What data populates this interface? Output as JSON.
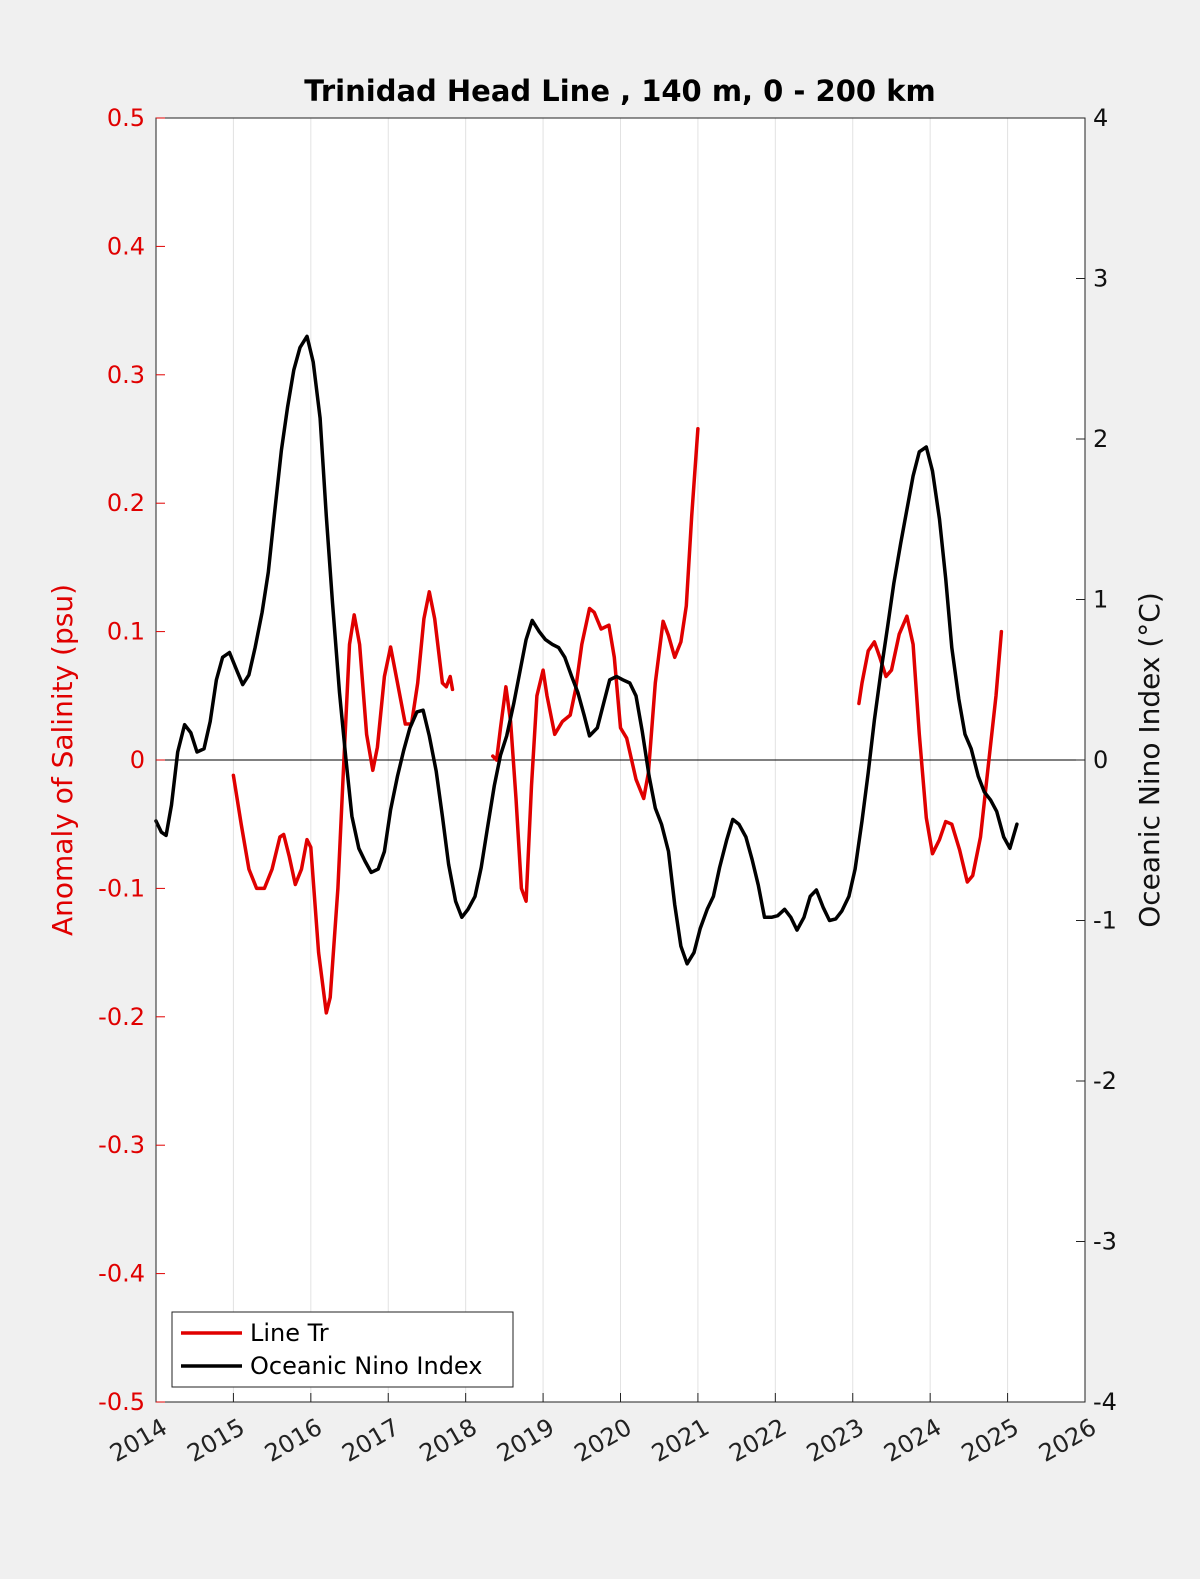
{
  "chart_data": {
    "type": "line",
    "title": "Trinidad Head Line , 140 m, 0 - 200 km",
    "xlabel": "",
    "ylabel_left": "Anomaly of Salinity (psu)",
    "ylabel_right": "Oceanic Nino Index (°C)",
    "xlim": [
      2014,
      2026
    ],
    "ylim_left": [
      -0.5,
      0.5
    ],
    "ylim_right": [
      -4,
      4
    ],
    "x_ticks": [
      "2014",
      "2015",
      "2016",
      "2017",
      "2018",
      "2019",
      "2020",
      "2021",
      "2022",
      "2023",
      "2024",
      "2025",
      "2026"
    ],
    "left_ticks": [
      "-0.5",
      "-0.4",
      "-0.3",
      "-0.2",
      "-0.1",
      "0",
      "0.1",
      "0.2",
      "0.3",
      "0.4",
      "0.5"
    ],
    "right_ticks": [
      "-4",
      "-3",
      "-2",
      "-1",
      "0",
      "1",
      "2",
      "3",
      "4"
    ],
    "grid": "vertical",
    "legend_position": "bottom-left",
    "series": [
      {
        "name": "Line Tr",
        "axis": "left",
        "color": "#e00000",
        "segments": [
          [
            [
              2015.0,
              -0.012
            ],
            [
              2015.1,
              -0.05
            ],
            [
              2015.2,
              -0.085
            ],
            [
              2015.3,
              -0.1
            ],
            [
              2015.4,
              -0.1
            ],
            [
              2015.5,
              -0.085
            ],
            [
              2015.6,
              -0.06
            ],
            [
              2015.65,
              -0.058
            ],
            [
              2015.72,
              -0.075
            ],
            [
              2015.8,
              -0.097
            ],
            [
              2015.88,
              -0.085
            ],
            [
              2015.95,
              -0.062
            ],
            [
              2016.0,
              -0.068
            ],
            [
              2016.1,
              -0.15
            ],
            [
              2016.2,
              -0.197
            ],
            [
              2016.25,
              -0.185
            ],
            [
              2016.35,
              -0.1
            ],
            [
              2016.42,
              -0.01
            ],
            [
              2016.5,
              0.09
            ],
            [
              2016.56,
              0.113
            ],
            [
              2016.63,
              0.09
            ],
            [
              2016.72,
              0.02
            ],
            [
              2016.8,
              -0.008
            ],
            [
              2016.86,
              0.01
            ],
            [
              2016.95,
              0.065
            ],
            [
              2017.03,
              0.088
            ],
            [
              2017.12,
              0.06
            ],
            [
              2017.22,
              0.028
            ],
            [
              2017.3,
              0.028
            ],
            [
              2017.38,
              0.06
            ],
            [
              2017.46,
              0.11
            ],
            [
              2017.53,
              0.131
            ],
            [
              2017.6,
              0.11
            ],
            [
              2017.7,
              0.06
            ],
            [
              2017.75,
              0.057
            ],
            [
              2017.8,
              0.065
            ],
            [
              2017.83,
              0.055
            ]
          ],
          [
            [
              2018.35,
              0.003
            ],
            [
              2018.4,
              0.0
            ],
            [
              2018.45,
              0.025
            ],
            [
              2018.52,
              0.057
            ],
            [
              2018.58,
              0.03
            ],
            [
              2018.65,
              -0.03
            ],
            [
              2018.72,
              -0.1
            ],
            [
              2018.78,
              -0.11
            ],
            [
              2018.85,
              -0.02
            ],
            [
              2018.92,
              0.05
            ],
            [
              2019.0,
              0.07
            ],
            [
              2019.05,
              0.05
            ],
            [
              2019.15,
              0.02
            ],
            [
              2019.25,
              0.03
            ],
            [
              2019.35,
              0.035
            ],
            [
              2019.42,
              0.055
            ],
            [
              2019.5,
              0.09
            ],
            [
              2019.6,
              0.118
            ],
            [
              2019.66,
              0.115
            ],
            [
              2019.75,
              0.102
            ],
            [
              2019.85,
              0.105
            ],
            [
              2019.92,
              0.08
            ],
            [
              2020.0,
              0.025
            ],
            [
              2020.08,
              0.017
            ],
            [
              2020.2,
              -0.015
            ],
            [
              2020.3,
              -0.03
            ],
            [
              2020.36,
              -0.01
            ],
            [
              2020.45,
              0.06
            ],
            [
              2020.55,
              0.108
            ],
            [
              2020.62,
              0.097
            ],
            [
              2020.7,
              0.08
            ],
            [
              2020.78,
              0.092
            ],
            [
              2020.85,
              0.12
            ],
            [
              2020.92,
              0.19
            ],
            [
              2021.0,
              0.258
            ]
          ],
          [
            [
              2023.08,
              0.044
            ],
            [
              2023.12,
              0.06
            ],
            [
              2023.2,
              0.085
            ],
            [
              2023.28,
              0.092
            ],
            [
              2023.35,
              0.08
            ],
            [
              2023.43,
              0.065
            ],
            [
              2023.5,
              0.07
            ],
            [
              2023.6,
              0.098
            ],
            [
              2023.7,
              0.112
            ],
            [
              2023.78,
              0.09
            ],
            [
              2023.86,
              0.02
            ],
            [
              2023.95,
              -0.045
            ],
            [
              2024.03,
              -0.073
            ],
            [
              2024.12,
              -0.062
            ],
            [
              2024.2,
              -0.048
            ],
            [
              2024.28,
              -0.05
            ],
            [
              2024.38,
              -0.07
            ],
            [
              2024.48,
              -0.095
            ],
            [
              2024.55,
              -0.09
            ],
            [
              2024.65,
              -0.06
            ],
            [
              2024.75,
              -0.005
            ],
            [
              2024.85,
              0.05
            ],
            [
              2024.92,
              0.1
            ]
          ]
        ]
      },
      {
        "name": "Oceanic Nino Index",
        "axis": "right",
        "color": "#000000",
        "segments": [
          [
            [
              2014.0,
              -0.38
            ],
            [
              2014.07,
              -0.45
            ],
            [
              2014.13,
              -0.47
            ],
            [
              2014.2,
              -0.28
            ],
            [
              2014.28,
              0.05
            ],
            [
              2014.37,
              0.22
            ],
            [
              2014.45,
              0.17
            ],
            [
              2014.53,
              0.05
            ],
            [
              2014.62,
              0.07
            ],
            [
              2014.7,
              0.24
            ],
            [
              2014.78,
              0.5
            ],
            [
              2014.86,
              0.64
            ],
            [
              2014.95,
              0.67
            ],
            [
              2015.05,
              0.55
            ],
            [
              2015.12,
              0.47
            ],
            [
              2015.2,
              0.53
            ],
            [
              2015.28,
              0.7
            ],
            [
              2015.37,
              0.92
            ],
            [
              2015.45,
              1.17
            ],
            [
              2015.53,
              1.53
            ],
            [
              2015.62,
              1.93
            ],
            [
              2015.7,
              2.2
            ],
            [
              2015.78,
              2.43
            ],
            [
              2015.86,
              2.57
            ],
            [
              2015.95,
              2.64
            ],
            [
              2016.03,
              2.48
            ],
            [
              2016.12,
              2.13
            ],
            [
              2016.2,
              1.52
            ],
            [
              2016.28,
              0.98
            ],
            [
              2016.37,
              0.42
            ],
            [
              2016.45,
              0.02
            ],
            [
              2016.53,
              -0.35
            ],
            [
              2016.62,
              -0.55
            ],
            [
              2016.7,
              -0.63
            ],
            [
              2016.78,
              -0.7
            ],
            [
              2016.87,
              -0.68
            ],
            [
              2016.95,
              -0.57
            ],
            [
              2017.03,
              -0.31
            ],
            [
              2017.12,
              -0.1
            ],
            [
              2017.2,
              0.06
            ],
            [
              2017.28,
              0.2
            ],
            [
              2017.37,
              0.3
            ],
            [
              2017.45,
              0.31
            ],
            [
              2017.53,
              0.15
            ],
            [
              2017.62,
              -0.07
            ],
            [
              2017.7,
              -0.35
            ],
            [
              2017.78,
              -0.65
            ],
            [
              2017.87,
              -0.88
            ],
            [
              2017.95,
              -0.98
            ],
            [
              2018.03,
              -0.93
            ],
            [
              2018.12,
              -0.85
            ],
            [
              2018.2,
              -0.67
            ],
            [
              2018.28,
              -0.43
            ],
            [
              2018.37,
              -0.16
            ],
            [
              2018.45,
              0.03
            ],
            [
              2018.53,
              0.15
            ],
            [
              2018.62,
              0.35
            ],
            [
              2018.7,
              0.55
            ],
            [
              2018.78,
              0.75
            ],
            [
              2018.86,
              0.87
            ],
            [
              2018.95,
              0.8
            ],
            [
              2019.03,
              0.75
            ],
            [
              2019.12,
              0.72
            ],
            [
              2019.2,
              0.7
            ],
            [
              2019.28,
              0.64
            ],
            [
              2019.37,
              0.52
            ],
            [
              2019.45,
              0.42
            ],
            [
              2019.53,
              0.28
            ],
            [
              2019.6,
              0.15
            ],
            [
              2019.7,
              0.2
            ],
            [
              2019.78,
              0.35
            ],
            [
              2019.86,
              0.5
            ],
            [
              2019.95,
              0.52
            ],
            [
              2020.03,
              0.5
            ],
            [
              2020.12,
              0.48
            ],
            [
              2020.2,
              0.4
            ],
            [
              2020.28,
              0.18
            ],
            [
              2020.37,
              -0.1
            ],
            [
              2020.45,
              -0.3
            ],
            [
              2020.53,
              -0.4
            ],
            [
              2020.62,
              -0.57
            ],
            [
              2020.7,
              -0.9
            ],
            [
              2020.78,
              -1.16
            ],
            [
              2020.86,
              -1.27
            ],
            [
              2020.95,
              -1.2
            ],
            [
              2021.03,
              -1.05
            ],
            [
              2021.12,
              -0.93
            ],
            [
              2021.2,
              -0.85
            ],
            [
              2021.28,
              -0.67
            ],
            [
              2021.37,
              -0.5
            ],
            [
              2021.45,
              -0.37
            ],
            [
              2021.53,
              -0.4
            ],
            [
              2021.62,
              -0.48
            ],
            [
              2021.7,
              -0.62
            ],
            [
              2021.78,
              -0.78
            ],
            [
              2021.86,
              -0.98
            ],
            [
              2021.95,
              -0.98
            ],
            [
              2022.03,
              -0.97
            ],
            [
              2022.12,
              -0.93
            ],
            [
              2022.2,
              -0.98
            ],
            [
              2022.28,
              -1.06
            ],
            [
              2022.37,
              -0.98
            ],
            [
              2022.45,
              -0.85
            ],
            [
              2022.53,
              -0.81
            ],
            [
              2022.62,
              -0.92
            ],
            [
              2022.7,
              -1.0
            ],
            [
              2022.78,
              -0.99
            ],
            [
              2022.86,
              -0.94
            ],
            [
              2022.95,
              -0.85
            ],
            [
              2023.03,
              -0.68
            ],
            [
              2023.12,
              -0.38
            ],
            [
              2023.2,
              -0.08
            ],
            [
              2023.28,
              0.25
            ],
            [
              2023.37,
              0.57
            ],
            [
              2023.45,
              0.83
            ],
            [
              2023.53,
              1.1
            ],
            [
              2023.62,
              1.35
            ],
            [
              2023.7,
              1.56
            ],
            [
              2023.78,
              1.77
            ],
            [
              2023.86,
              1.92
            ],
            [
              2023.95,
              1.95
            ],
            [
              2024.03,
              1.8
            ],
            [
              2024.12,
              1.5
            ],
            [
              2024.2,
              1.13
            ],
            [
              2024.28,
              0.7
            ],
            [
              2024.37,
              0.38
            ],
            [
              2024.45,
              0.16
            ],
            [
              2024.53,
              0.07
            ],
            [
              2024.62,
              -0.1
            ],
            [
              2024.7,
              -0.2
            ],
            [
              2024.78,
              -0.25
            ],
            [
              2024.86,
              -0.32
            ],
            [
              2024.95,
              -0.48
            ],
            [
              2025.03,
              -0.55
            ],
            [
              2025.12,
              -0.4
            ]
          ]
        ]
      }
    ]
  }
}
